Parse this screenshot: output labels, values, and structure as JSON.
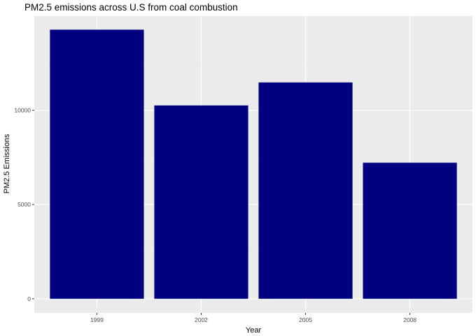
{
  "chart_data": {
    "type": "bar",
    "title": "PM2.5 emissions across U.S from coal combustion",
    "xlabel": "Year",
    "ylabel": "PM2.5 Emissions",
    "categories": [
      "1999",
      "2002",
      "2005",
      "2008"
    ],
    "values": [
      14280,
      10260,
      11480,
      7220
    ],
    "ylim": [
      -750,
      15000
    ],
    "yticks": [
      0,
      5000,
      10000
    ],
    "ytick_labels": [
      "0",
      "5000",
      "10000"
    ],
    "grid": true,
    "legend": "none",
    "colors": {
      "bar": "#000080",
      "panel_background": "#ebebeb",
      "grid_major": "#ffffff",
      "grid_minor": "#f2f2f2",
      "tick_mark": "#333333"
    }
  }
}
